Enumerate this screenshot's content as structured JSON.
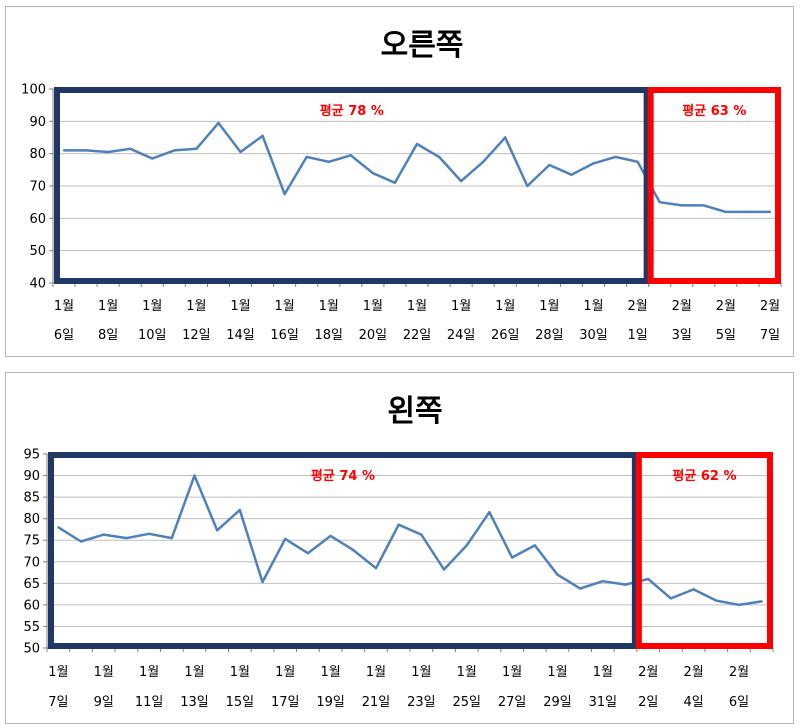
{
  "chart_data": [
    {
      "type": "line",
      "title": "오른쪽",
      "ylim": [
        40,
        100
      ],
      "yticks": [
        40,
        50,
        60,
        70,
        80,
        90,
        100
      ],
      "x_labels": [
        [
          "1월",
          "6일"
        ],
        [
          "1월",
          "8일"
        ],
        [
          "1월",
          "10일"
        ],
        [
          "1월",
          "12일"
        ],
        [
          "1월",
          "14일"
        ],
        [
          "1월",
          "16일"
        ],
        [
          "1월",
          "18일"
        ],
        [
          "1월",
          "20일"
        ],
        [
          "1월",
          "22일"
        ],
        [
          "1월",
          "24일"
        ],
        [
          "1월",
          "26일"
        ],
        [
          "1월",
          "28일"
        ],
        [
          "1월",
          "30일"
        ],
        [
          "2월",
          "1일"
        ],
        [
          "2월",
          "3일"
        ],
        [
          "2월",
          "5일"
        ],
        [
          "2월",
          "7일"
        ]
      ],
      "series": [
        {
          "values": [
            81,
            81,
            80.5,
            81.5,
            78.5,
            81,
            81.5,
            89.5,
            80.5,
            85.5,
            67.5,
            79,
            77.5,
            79.5,
            74,
            71,
            83,
            79,
            71.5,
            77.5,
            85,
            70,
            76.5,
            73.5,
            77,
            79,
            77.5,
            65,
            64,
            64,
            62,
            62,
            62
          ]
        }
      ],
      "color": "#4f81bd",
      "regions": [
        {
          "label": "평균 78 %",
          "start": 0,
          "end": 26.5,
          "color": "#1f3864"
        },
        {
          "label": "평균 63 %",
          "start": 26.5,
          "end": 32,
          "color": "#ff0000"
        }
      ]
    },
    {
      "type": "line",
      "title": "왼쪽",
      "ylim": [
        50,
        95
      ],
      "yticks": [
        50,
        55,
        60,
        65,
        70,
        75,
        80,
        85,
        90,
        95
      ],
      "x_labels": [
        [
          "1월",
          "7일"
        ],
        [
          "1월",
          "9일"
        ],
        [
          "1월",
          "11일"
        ],
        [
          "1월",
          "13일"
        ],
        [
          "1월",
          "15일"
        ],
        [
          "1월",
          "17일"
        ],
        [
          "1월",
          "19일"
        ],
        [
          "1월",
          "21일"
        ],
        [
          "1월",
          "23일"
        ],
        [
          "1월",
          "25일"
        ],
        [
          "1월",
          "27일"
        ],
        [
          "1월",
          "29일"
        ],
        [
          "1월",
          "31일"
        ],
        [
          "2월",
          "2일"
        ],
        [
          "2월",
          "4일"
        ],
        [
          "2월",
          "6일"
        ]
      ],
      "series": [
        {
          "values": [
            78,
            74.7,
            76.3,
            75.5,
            76.5,
            75.5,
            90,
            77.3,
            82,
            65.3,
            75.3,
            72,
            76,
            72.7,
            68.5,
            78.6,
            76.3,
            68.2,
            73.8,
            81.5,
            71,
            73.8,
            67,
            63.8,
            65.5,
            64.7,
            66,
            61.5,
            63.6,
            61,
            60,
            60.8
          ]
        }
      ],
      "color": "#4f81bd",
      "regions": [
        {
          "label": "평균 74 %",
          "start": 0,
          "end": 25.5,
          "color": "#1f3864"
        },
        {
          "label": "평균 62 %",
          "start": 25.5,
          "end": 31,
          "color": "#ff0000"
        }
      ]
    }
  ]
}
